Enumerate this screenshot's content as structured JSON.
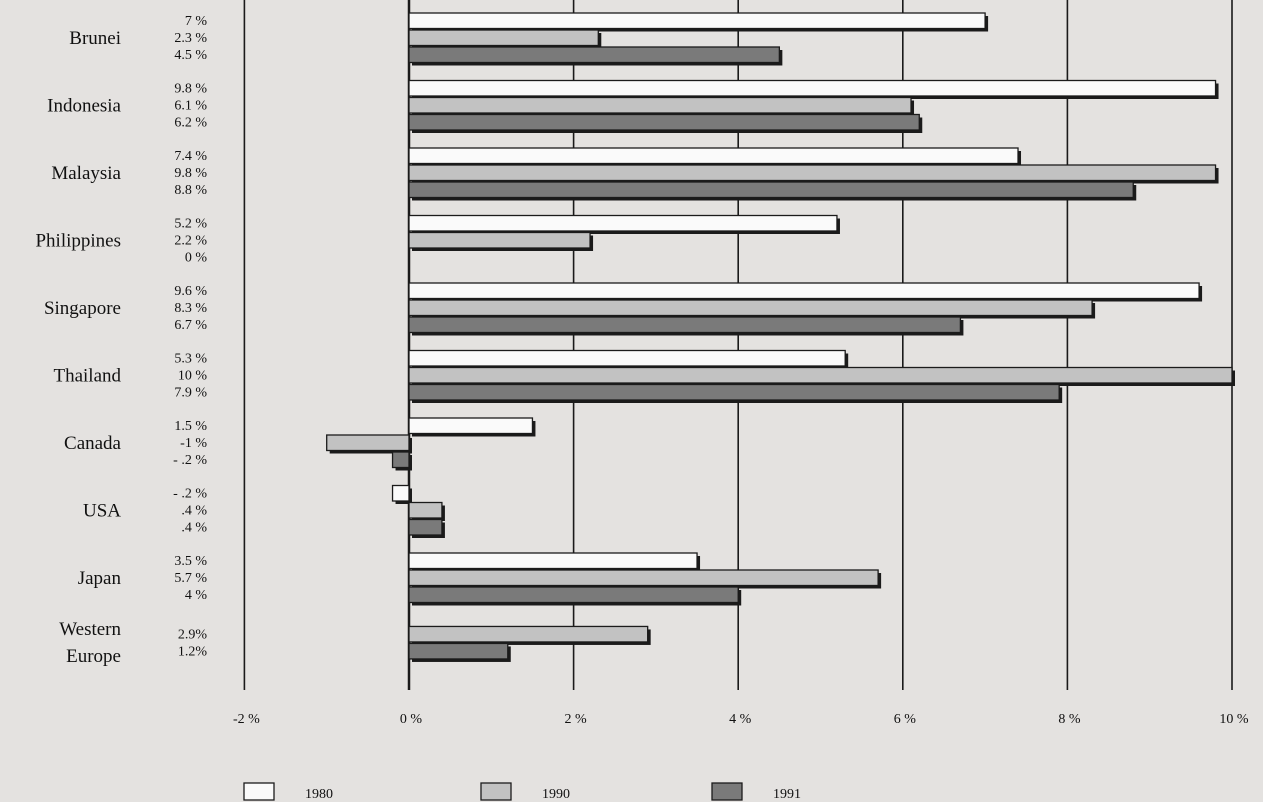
{
  "chart_data": {
    "type": "bar",
    "orientation": "horizontal",
    "title": "",
    "xlabel": "",
    "ylabel": "",
    "xlim": [
      -2,
      10
    ],
    "grid": true,
    "legend": {
      "position": "bottom"
    },
    "categories": [
      {
        "label_lines": [
          "Brunei"
        ]
      },
      {
        "label_lines": [
          "Indonesia"
        ]
      },
      {
        "label_lines": [
          "Malaysia"
        ]
      },
      {
        "label_lines": [
          "Philippines"
        ]
      },
      {
        "label_lines": [
          "Singapore"
        ]
      },
      {
        "label_lines": [
          "Thailand"
        ]
      },
      {
        "label_lines": [
          "Canada"
        ]
      },
      {
        "label_lines": [
          "USA"
        ]
      },
      {
        "label_lines": [
          "Japan"
        ]
      },
      {
        "label_lines": [
          "Western",
          "Europe"
        ]
      }
    ],
    "series": [
      {
        "name": "1980",
        "color": "#fafafa",
        "values": [
          7,
          9.8,
          7.4,
          5.2,
          9.6,
          5.3,
          1.5,
          -0.2,
          3.5,
          null
        ],
        "value_labels": [
          "7 %",
          "9.8 %",
          "7.4 %",
          "5.2 %",
          "9.6 %",
          "5.3 %",
          "1.5 %",
          "- .2 %",
          "3.5 %",
          ""
        ]
      },
      {
        "name": "1990",
        "color": "#c2c2c2",
        "values": [
          2.3,
          6.1,
          9.8,
          2.2,
          8.3,
          10,
          -1,
          0.4,
          5.7,
          2.9
        ],
        "value_labels": [
          "2.3 %",
          "6.1 %",
          "9.8 %",
          "2.2 %",
          "8.3 %",
          "10  %",
          "-1  %",
          ".4 %",
          "5.7 %",
          "2.9%"
        ]
      },
      {
        "name": "1991",
        "color": "#7a7a7a",
        "values": [
          4.5,
          6.2,
          8.8,
          0,
          6.7,
          7.9,
          -0.2,
          0.4,
          4,
          1.2
        ],
        "value_labels": [
          "4.5 %",
          "6.2 %",
          "8.8 %",
          "0  %",
          "6.7 %",
          "7.9 %",
          "- .2 %",
          ".4 %",
          "4  %",
          "1.2%"
        ]
      }
    ],
    "ticks": [
      {
        "value": -2,
        "label": "-2 %"
      },
      {
        "value": 0,
        "label": "0 %"
      },
      {
        "value": 2,
        "label": "2 %"
      },
      {
        "value": 4,
        "label": "4 %"
      },
      {
        "value": 6,
        "label": "6 %"
      },
      {
        "value": 8,
        "label": "8 %"
      },
      {
        "value": 10,
        "label": "10 %"
      }
    ]
  }
}
